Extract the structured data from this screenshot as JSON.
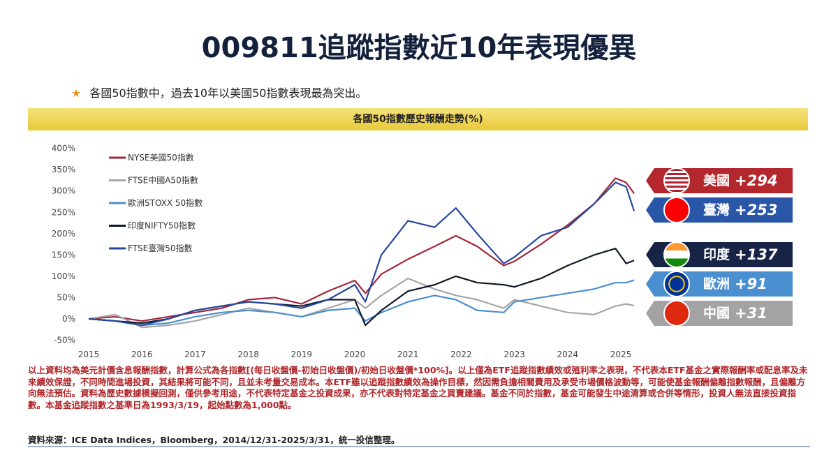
{
  "title": "009811追蹤指數近10年表現優異",
  "bullet": "各國50指數中，過去10年以美國50指數表現最為突出。",
  "chart_data": {
    "type": "line",
    "title": "各國50指數歷史報酬走勢(%)",
    "ylim": [
      -50,
      400
    ],
    "yticks": [
      "-50%",
      "0%",
      "50%",
      "100%",
      "150%",
      "200%",
      "250%",
      "300%",
      "350%",
      "400%"
    ],
    "xlim": [
      2015,
      2025.3
    ],
    "xticks": [
      "2015",
      "2016",
      "2017",
      "2018",
      "2019",
      "2020",
      "2021",
      "2022",
      "2023",
      "2024",
      "2025"
    ],
    "legend_position": "top-left",
    "x": [
      2015,
      2015.5,
      2016,
      2016.5,
      2017,
      2017.5,
      2018,
      2018.5,
      2019,
      2019.5,
      2020,
      2020.2,
      2020.5,
      2021,
      2021.5,
      2021.9,
      2022.3,
      2022.8,
      2023,
      2023.5,
      2024,
      2024.5,
      2024.9,
      2025.1,
      2025.25
    ],
    "series": [
      {
        "name": "NYSE美國50指數",
        "color": "#a3263a",
        "values": [
          0,
          5,
          -5,
          5,
          15,
          25,
          45,
          50,
          35,
          65,
          90,
          60,
          105,
          140,
          170,
          195,
          170,
          125,
          135,
          175,
          220,
          270,
          330,
          320,
          294
        ]
      },
      {
        "name": "FTSE中國A50指數",
        "color": "#a6a6a6",
        "values": [
          0,
          10,
          -20,
          -15,
          -5,
          10,
          25,
          15,
          5,
          25,
          45,
          25,
          55,
          95,
          70,
          55,
          45,
          25,
          45,
          30,
          15,
          10,
          30,
          35,
          31
        ]
      },
      {
        "name": "歐洲STOXX 50指數",
        "color": "#4a8fd0",
        "values": [
          0,
          -5,
          -15,
          -10,
          5,
          15,
          20,
          15,
          5,
          20,
          25,
          -5,
          15,
          40,
          55,
          45,
          20,
          15,
          40,
          50,
          60,
          70,
          85,
          85,
          91
        ]
      },
      {
        "name": "印度NIFTY50指數",
        "color": "#111827",
        "values": [
          0,
          -5,
          -10,
          0,
          20,
          30,
          40,
          35,
          30,
          45,
          45,
          -15,
          20,
          65,
          80,
          100,
          85,
          80,
          75,
          95,
          125,
          150,
          165,
          130,
          137
        ]
      },
      {
        "name": "FTSE臺灣50指數",
        "color": "#2647a0",
        "values": [
          0,
          -5,
          -15,
          0,
          20,
          30,
          40,
          35,
          25,
          45,
          80,
          40,
          150,
          230,
          215,
          260,
          200,
          130,
          145,
          195,
          215,
          270,
          320,
          310,
          253
        ]
      }
    ]
  },
  "tags": [
    {
      "label": "美國",
      "value": "+294",
      "color": "#b3272d",
      "flag": "us-flag-icon"
    },
    {
      "label": "臺灣",
      "value": "+253",
      "color": "#2a56a8",
      "flag": "taiwan-flag-icon"
    },
    {
      "label": "印度",
      "value": "+137",
      "color": "#172446",
      "flag": "india-flag-icon"
    },
    {
      "label": "歐洲",
      "value": "+91",
      "color": "#4a8fd0",
      "flag": "eu-flag-icon"
    },
    {
      "label": "中國",
      "value": "+31",
      "color": "#a3a3a3",
      "flag": "china-flag-icon"
    }
  ],
  "notes": "以上資料均為美元計價含息報酬指數，計算公式為各指數[(每日收盤價-初始日收盤價)/初始日收盤價*100%]。以上僅為ETF追蹤指數績效或殖利率之表現，不代表本ETF基金之實際報酬率或配息率及未來績效保證，不同時間進場投資，其結果將可能不同，且並未考量交易成本。本ETF雖以追蹤指數績效為操作目標，然因需負擔相關費用及承受市場價格波動等，可能使基金報酬偏離指數報酬，且偏離方向無法預估。資料為歷史數據模擬回測，僅供參考用途，不代表特定基金之投資成果，亦不代表對特定基金之買賣建議。基金不同於指數，基金可能發生中途清算或合併等情形，投資人無法直接投資指數。本基金追蹤指數之基準日為1993/3/19，起始點數為1,000點。",
  "source": "資料來源：ICE Data Indices，Bloomberg，2014/12/31-2025/3/31，統一投信整理。"
}
